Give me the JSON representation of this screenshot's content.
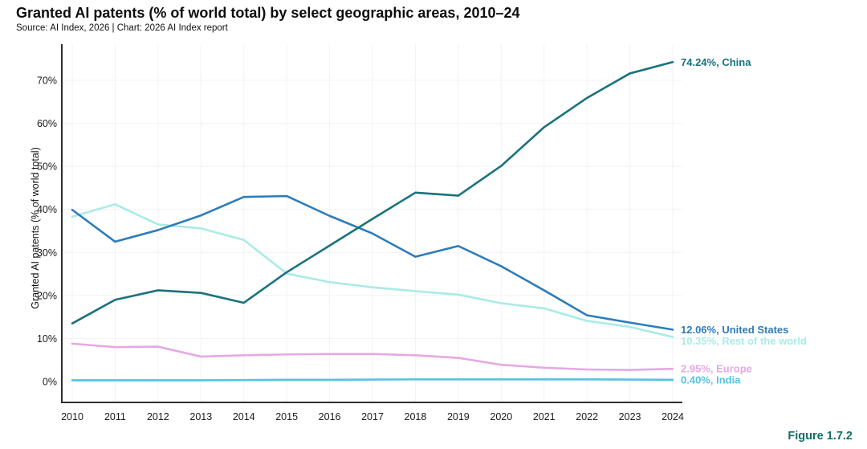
{
  "chart_data": {
    "type": "line",
    "title": "Granted AI patents (% of world total) by select geographic areas, 2010–24",
    "source": "Source: AI Index, 2026 | Chart: 2026 AI Index report",
    "figure_label": "Figure 1.7.2",
    "figure_label_color": "#156e66",
    "ylabel": "Granted AI patents (% of world total)",
    "xlabel": "",
    "ylim": [
      0,
      77.5
    ],
    "yticks": [
      0,
      10,
      20,
      30,
      40,
      50,
      60,
      70
    ],
    "ytick_suffix": "%",
    "grid": true,
    "legend_position": "right-end-labels",
    "axis_color": "#2e2e2e",
    "grid_color": "#f4f1f4",
    "x": [
      2010,
      2011,
      2012,
      2013,
      2014,
      2015,
      2016,
      2017,
      2018,
      2019,
      2020,
      2021,
      2022,
      2023,
      2024
    ],
    "series": [
      {
        "name": "China",
        "color": "#19737d",
        "end_label": "74.24%, China",
        "values": [
          13.5,
          19.0,
          21.2,
          20.6,
          18.3,
          25.4,
          31.6,
          37.8,
          43.9,
          43.2,
          50.1,
          59.1,
          65.9,
          71.6,
          74.24
        ]
      },
      {
        "name": "United States",
        "color": "#2e7cba",
        "end_label": "12.06%, United States",
        "values": [
          39.9,
          32.5,
          35.2,
          38.6,
          42.9,
          43.1,
          38.5,
          34.4,
          29.0,
          31.5,
          26.8,
          21.2,
          15.4,
          13.7,
          12.06
        ]
      },
      {
        "name": "Rest of the world",
        "color": "#a9ebe6",
        "end_label": "10.35%, Rest of the world",
        "values": [
          38.3,
          41.2,
          36.5,
          35.6,
          32.9,
          25.1,
          23.1,
          21.9,
          21.0,
          20.2,
          18.2,
          17.0,
          14.1,
          12.7,
          10.35
        ]
      },
      {
        "name": "Europe",
        "color": "#e5a9e4",
        "end_label": "2.95%, Europe",
        "values": [
          8.8,
          8.0,
          8.1,
          5.8,
          6.1,
          6.3,
          6.4,
          6.4,
          6.1,
          5.5,
          3.9,
          3.2,
          2.8,
          2.7,
          2.95
        ]
      },
      {
        "name": "India",
        "color": "#54c3e6",
        "end_label": "0.40%, India",
        "values": [
          0.3,
          0.3,
          0.3,
          0.3,
          0.35,
          0.4,
          0.4,
          0.45,
          0.5,
          0.5,
          0.5,
          0.5,
          0.5,
          0.45,
          0.4
        ]
      }
    ]
  }
}
